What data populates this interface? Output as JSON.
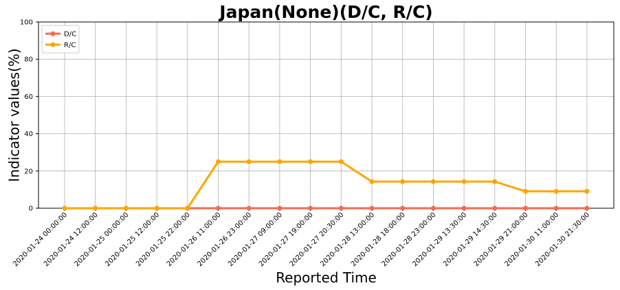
{
  "chart_data": {
    "type": "line",
    "title": "Japan(None)(D/C, R/C)",
    "xlabel": "Reported Time",
    "ylabel": "Indicator values(%)",
    "ylim": [
      0,
      100
    ],
    "yticks": [
      "0",
      "20",
      "40",
      "60",
      "80",
      "100"
    ],
    "grid": true,
    "legend_position": "top-left",
    "categories": [
      "2020-01-24 00:00:00",
      "2020-01-24 12:00:00",
      "2020-01-25 00:00:00",
      "2020-01-25 12:00:00",
      "2020-01-25 22:00:00",
      "2020-01-26 11:00:00",
      "2020-01-26 23:00:00",
      "2020-01-27 09:00:00",
      "2020-01-27 19:00:00",
      "2020-01-27 20:30:00",
      "2020-01-28 13:00:00",
      "2020-01-28 18:00:00",
      "2020-01-28 23:00:00",
      "2020-01-29 13:30:00",
      "2020-01-29 14:30:00",
      "2020-01-29 21:00:00",
      "2020-01-30 11:00:00",
      "2020-01-30 21:30:00"
    ],
    "series": [
      {
        "name": "D/C",
        "color": "#f46b4e",
        "values": [
          0,
          0,
          0,
          0,
          0,
          0,
          0,
          0,
          0,
          0,
          0,
          0,
          0,
          0,
          0,
          0,
          0,
          0
        ]
      },
      {
        "name": "R/C",
        "color": "#ffa500",
        "values": [
          0,
          0,
          0,
          0,
          0,
          25,
          25,
          25,
          25,
          25,
          14.3,
          14.3,
          14.3,
          14.3,
          14.3,
          9.1,
          9.1,
          9.1
        ]
      }
    ]
  }
}
